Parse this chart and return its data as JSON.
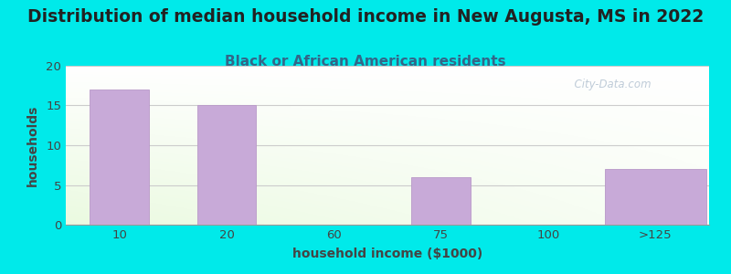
{
  "title": "Distribution of median household income in New Augusta, MS in 2022",
  "subtitle": "Black or African American residents",
  "xlabel": "household income ($1000)",
  "ylabel": "households",
  "categories": [
    "10",
    "20",
    "60",
    "75",
    "100",
    ">125"
  ],
  "values": [
    17,
    15,
    0,
    6,
    0,
    7
  ],
  "bar_color": "#c8aad8",
  "bar_edge_color": "#b898c8",
  "background_color": "#00eaea",
  "ylim": [
    0,
    20
  ],
  "yticks": [
    0,
    5,
    10,
    15,
    20
  ],
  "title_fontsize": 13.5,
  "subtitle_fontsize": 11,
  "axis_label_fontsize": 10,
  "tick_fontsize": 9.5,
  "watermark": "  City-Data.com",
  "title_color": "#222222",
  "subtitle_color": "#336688",
  "label_color": "#444444",
  "tick_color": "#444444"
}
